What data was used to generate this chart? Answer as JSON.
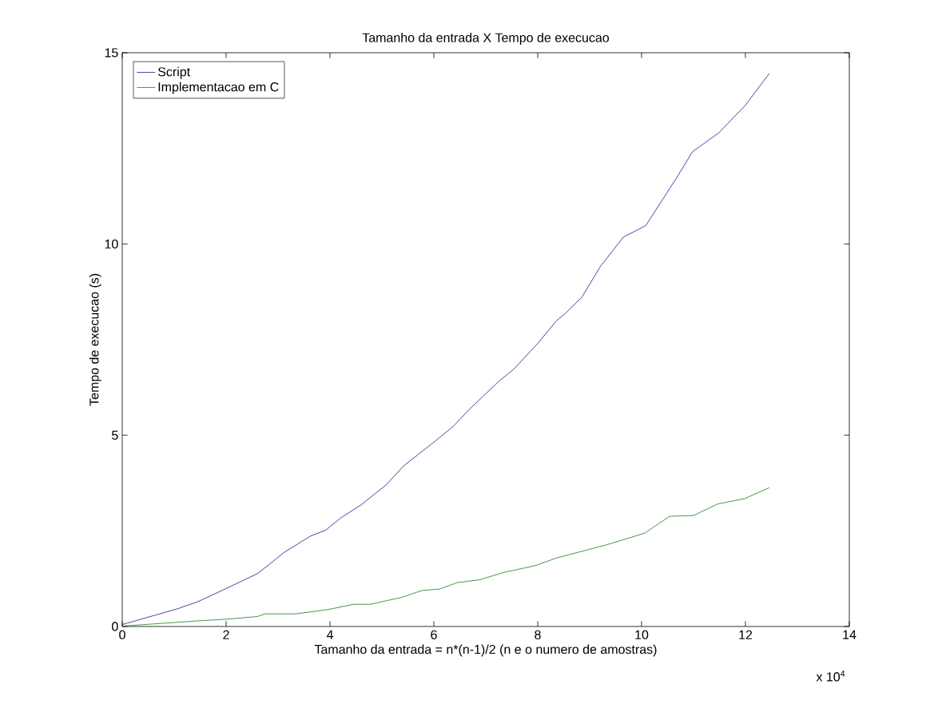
{
  "chart_data": {
    "type": "line",
    "title": "Tamanho da entrada X Tempo de execucao",
    "xlabel": "Tamanho da entrada = n*(n-1)/2 (n e o numero de amostras)",
    "ylabel": "Tempo de execucao (s)",
    "annotations": [
      "x 10$^{4}$"
    ],
    "xlim": [
      0,
      14
    ],
    "xticks": [
      0,
      2,
      4,
      6,
      8,
      10,
      12,
      14
    ],
    "ylim": [
      0,
      15
    ],
    "yticks": [
      0,
      5,
      10,
      15
    ],
    "legend": "top left",
    "grid": false,
    "line_style": "solid",
    "marker": "none",
    "series": [
      {
        "name": "Script",
        "color": "#1a1a8c",
        "x": [
          0,
          0.62,
          1.08,
          1.46,
          1.95,
          2.6,
          2.8,
          3.11,
          3.62,
          3.92,
          4.21,
          4.6,
          5.08,
          5.42,
          6.03,
          6.38,
          6.67,
          7.26,
          7.54,
          8.0,
          8.36,
          8.52,
          8.85,
          9.21,
          9.65,
          10.08,
          10.67,
          10.98,
          11.49,
          12.0,
          12.46
        ],
        "values": [
          0.05,
          0.29,
          0.47,
          0.65,
          0.96,
          1.38,
          1.59,
          1.93,
          2.36,
          2.52,
          2.84,
          3.18,
          3.7,
          4.2,
          4.85,
          5.24,
          5.66,
          6.42,
          6.73,
          7.4,
          7.99,
          8.17,
          8.61,
          9.42,
          10.18,
          10.48,
          11.72,
          12.41,
          12.91,
          13.63,
          14.46
        ]
      },
      {
        "name": "Implementacao em C",
        "color": "#1e7a1e",
        "x": [
          0,
          1.49,
          2.0,
          2.6,
          2.75,
          3.34,
          3.95,
          4.46,
          4.77,
          5.38,
          5.77,
          6.11,
          6.46,
          6.88,
          7.34,
          7.95,
          8.36,
          9.34,
          10.06,
          10.54,
          11.0,
          11.46,
          11.98,
          12.46
        ],
        "values": [
          0.01,
          0.15,
          0.19,
          0.26,
          0.33,
          0.33,
          0.44,
          0.58,
          0.58,
          0.76,
          0.94,
          0.98,
          1.15,
          1.22,
          1.41,
          1.59,
          1.79,
          2.14,
          2.44,
          2.88,
          2.9,
          3.2,
          3.34,
          3.63
        ]
      }
    ]
  }
}
